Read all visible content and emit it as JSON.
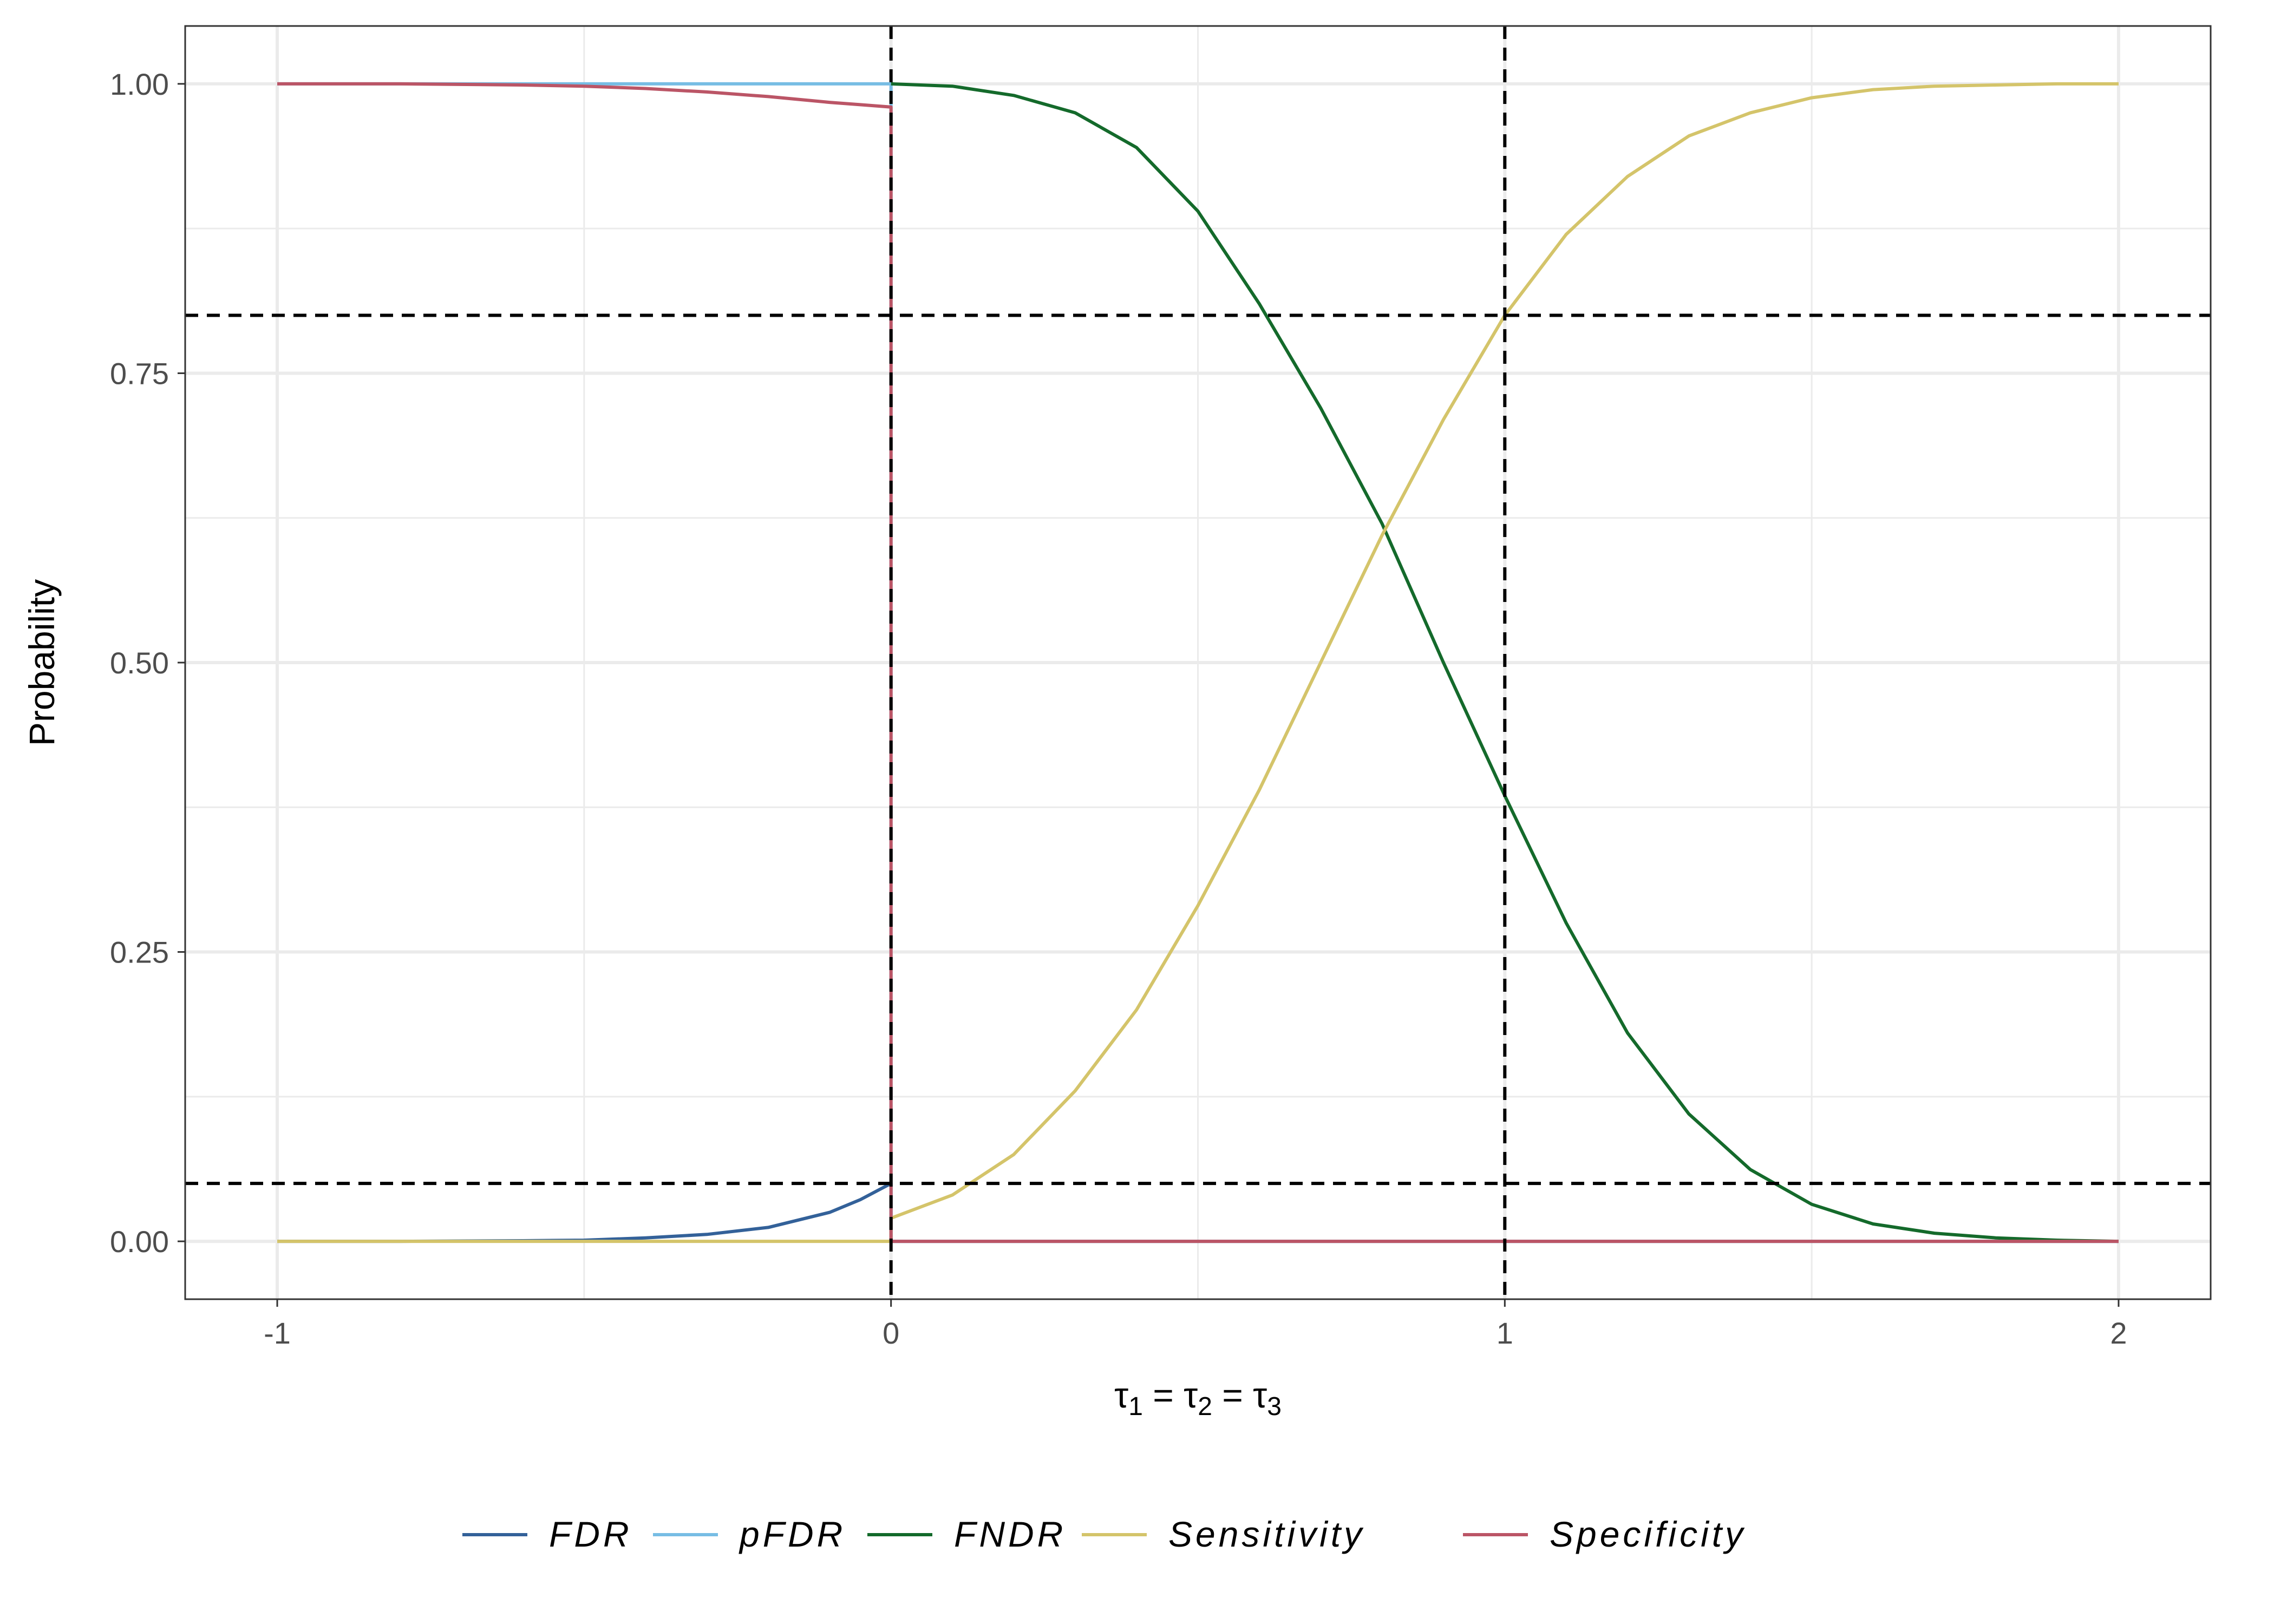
{
  "chart_data": {
    "type": "line",
    "xlabel": "τ1 = τ2 = τ3",
    "xlabel_parts": [
      "τ",
      "1",
      " = τ",
      "2",
      " = τ",
      "3"
    ],
    "ylabel": "Probability",
    "xlim": [
      -1.15,
      2.15
    ],
    "ylim": [
      -0.05,
      1.05
    ],
    "x_ticks": [
      -1,
      0,
      1,
      2
    ],
    "x_tick_labels": [
      "-1",
      "0",
      "1",
      "2"
    ],
    "y_ticks": [
      0,
      0.25,
      0.5,
      0.75,
      1
    ],
    "y_tick_labels": [
      "0.00",
      "0.25",
      "0.50",
      "0.75",
      "1.00"
    ],
    "grid": true,
    "legend_position": "bottom",
    "reference_lines": {
      "vertical": [
        0,
        1
      ],
      "horizontal": [
        0.05,
        0.8
      ]
    },
    "series": [
      {
        "name": "FDR",
        "color": "#336199",
        "x": [
          -1,
          -0.8,
          -0.6,
          -0.5,
          -0.4,
          -0.3,
          -0.2,
          -0.1,
          -0.05,
          0,
          0,
          2
        ],
        "y": [
          0,
          0,
          0.0005,
          0.001,
          0.003,
          0.006,
          0.012,
          0.025,
          0.036,
          0.05,
          0,
          0
        ]
      },
      {
        "name": "pFDR",
        "color": "#77bde4",
        "x": [
          -1,
          0,
          0,
          2
        ],
        "y": [
          1,
          1,
          0,
          0
        ]
      },
      {
        "name": "FNDR",
        "color": "#146a2b",
        "x": [
          0,
          0.1,
          0.2,
          0.3,
          0.4,
          0.5,
          0.6,
          0.7,
          0.8,
          0.9,
          1.0,
          1.1,
          1.2,
          1.3,
          1.4,
          1.5,
          1.6,
          1.7,
          1.8,
          1.9,
          2.0
        ],
        "y": [
          1.0,
          0.998,
          0.99,
          0.975,
          0.945,
          0.89,
          0.81,
          0.72,
          0.62,
          0.5,
          0.385,
          0.275,
          0.18,
          0.11,
          0.062,
          0.032,
          0.015,
          0.007,
          0.003,
          0.001,
          0
        ]
      },
      {
        "name": "Sensitivity",
        "color": "#d4c46a",
        "x": [
          -1,
          0,
          0,
          0.1,
          0.2,
          0.3,
          0.4,
          0.5,
          0.6,
          0.7,
          0.8,
          0.9,
          1.0,
          1.1,
          1.2,
          1.3,
          1.4,
          1.5,
          1.6,
          1.7,
          1.8,
          1.9,
          2.0
        ],
        "y": [
          0,
          0,
          0.02,
          0.04,
          0.075,
          0.13,
          0.2,
          0.29,
          0.39,
          0.5,
          0.61,
          0.71,
          0.8,
          0.87,
          0.92,
          0.955,
          0.975,
          0.988,
          0.995,
          0.998,
          0.999,
          1.0,
          1.0
        ]
      },
      {
        "name": "Specificity",
        "color": "#bb5566",
        "x": [
          -1,
          -0.8,
          -0.6,
          -0.5,
          -0.4,
          -0.3,
          -0.2,
          -0.1,
          -0.05,
          0,
          0,
          2
        ],
        "y": [
          1,
          1,
          0.999,
          0.998,
          0.996,
          0.993,
          0.989,
          0.984,
          0.982,
          0.98,
          0,
          0
        ]
      }
    ]
  }
}
